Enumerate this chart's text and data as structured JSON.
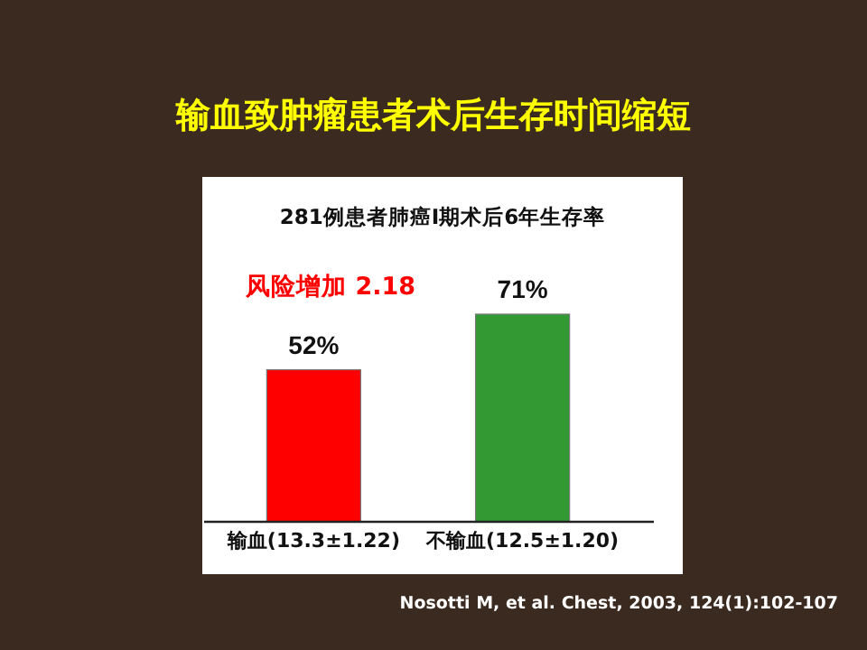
{
  "chart_data": {
    "type": "bar",
    "title": "输血致肿瘤患者术后生存时间缩短",
    "subtitle": "281例患者肺癌Ⅰ期术后6年生存率",
    "categories": [
      "输血(13.3±1.22)",
      "不输血(12.5±1.20)"
    ],
    "values": [
      52,
      71
    ],
    "colors": [
      "#ff0000",
      "#339933"
    ],
    "value_labels": [
      "52%",
      "71%"
    ],
    "annotations": [
      "风险增加 2.18",
      "Nosotti M, et al. Chest, 2003, 124(1):102-107"
    ]
  }
}
